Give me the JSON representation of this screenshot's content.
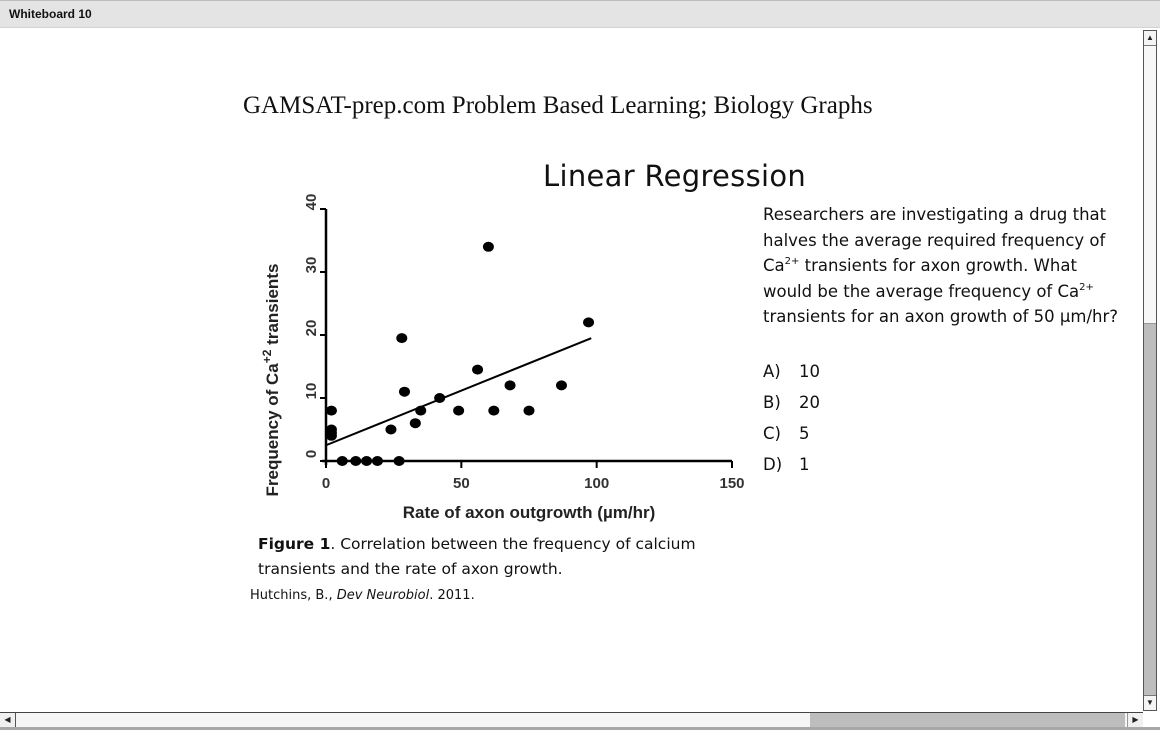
{
  "window": {
    "title": "Whiteboard 10"
  },
  "page": {
    "heading": "GAMSAT-prep.com Problem Based Learning; Biology Graphs",
    "slide_title": "Linear Regression"
  },
  "question": {
    "text_parts": [
      "Researchers are investigating a drug that halves the average required frequency of Ca",
      "2+",
      " transients for axon growth. What would be the average frequency of Ca",
      "2+",
      " transients for an axon growth of 50 µm/hr?"
    ],
    "options": [
      {
        "letter": "A)",
        "value": "10"
      },
      {
        "letter": "B)",
        "value": "20"
      },
      {
        "letter": "C)",
        "value": "5"
      },
      {
        "letter": "D)",
        "value": "1"
      }
    ]
  },
  "caption": {
    "label": "Figure 1",
    "text": ". Correlation between the frequency of calcium transients and the rate of axon growth."
  },
  "citation": {
    "author": "Hutchins, B., ",
    "journal": "Dev Neurobiol",
    "year": ". 2011."
  },
  "chart_data": {
    "type": "scatter",
    "title": "",
    "xlabel": "Rate of axon outgrowth (µm/hr)",
    "ylabel": "Frequency of Ca+2 transients",
    "xlim": [
      0,
      150
    ],
    "ylim": [
      0,
      40
    ],
    "xticks": [
      0,
      50,
      100,
      150
    ],
    "yticks": [
      0,
      10,
      20,
      30,
      40
    ],
    "grid": false,
    "legend": null,
    "points": [
      [
        2,
        8
      ],
      [
        2,
        5
      ],
      [
        2,
        4.5
      ],
      [
        2,
        4
      ],
      [
        6,
        0
      ],
      [
        11,
        0
      ],
      [
        15,
        0
      ],
      [
        19,
        0
      ],
      [
        27,
        0
      ],
      [
        24,
        5
      ],
      [
        28,
        19.5
      ],
      [
        29,
        11
      ],
      [
        33,
        6
      ],
      [
        35,
        8
      ],
      [
        42,
        10
      ],
      [
        49,
        8
      ],
      [
        56,
        14.5
      ],
      [
        60,
        34
      ],
      [
        62,
        8
      ],
      [
        68,
        12
      ],
      [
        75,
        8
      ],
      [
        87,
        12
      ],
      [
        97,
        22
      ]
    ],
    "regression_line": {
      "x": [
        0,
        98
      ],
      "y": [
        2.5,
        19.5
      ]
    }
  },
  "scrollbars": {
    "vertical": {
      "up": "▲",
      "down": "▼"
    },
    "horizontal": {
      "left": "◀",
      "right": "▶"
    }
  }
}
